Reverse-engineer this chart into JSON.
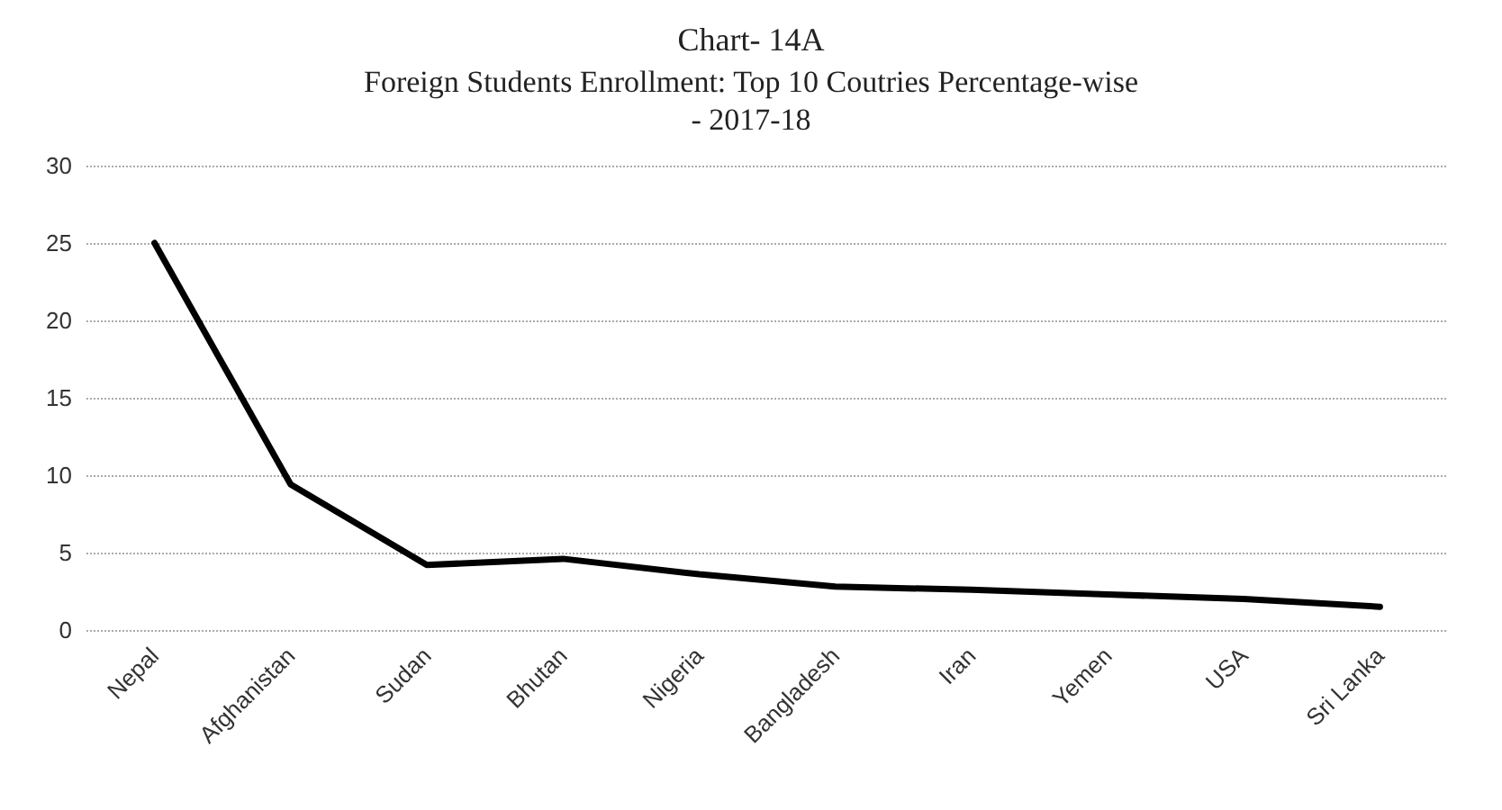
{
  "chart_data": {
    "type": "line",
    "title": "Chart- 14A",
    "subtitle": "Foreign Students Enrollment: Top 10 Coutries Percentage-wise\n- 2017-18",
    "categories": [
      "Nepal",
      "Afghanistan",
      "Sudan",
      "Bhutan",
      "Nigeria",
      "Bangladesh",
      "Iran",
      "Yemen",
      "USA",
      "Sri Lanka"
    ],
    "series": [
      {
        "color": "#000000",
        "values": [
          25,
          9.4,
          4.2,
          4.6,
          3.6,
          2.8,
          2.6,
          2.3,
          2.0,
          1.5
        ]
      }
    ],
    "ylim": [
      0,
      30
    ],
    "yticks": [
      0,
      5,
      10,
      15,
      20,
      25,
      30
    ],
    "grid": "y",
    "marker": "none",
    "line_style": "solid"
  }
}
